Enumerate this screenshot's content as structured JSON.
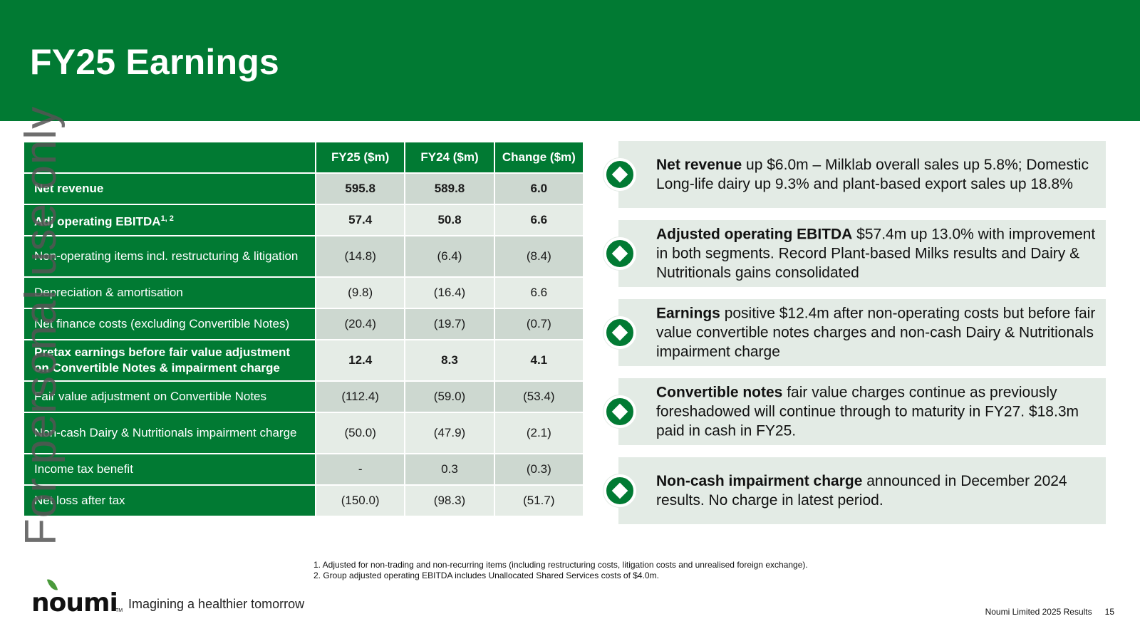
{
  "title": "FY25 Earnings",
  "watermark": "For personal use only",
  "table": {
    "headers": [
      "",
      "FY25 ($m)",
      "FY24 ($m)",
      "Change ($m)"
    ],
    "rows": [
      {
        "label": "Net revenue",
        "sup": "",
        "fy25": "595.8",
        "fy24": "589.8",
        "change": "6.0"
      },
      {
        "label": "Adj operating EBITDA",
        "sup": "1, 2",
        "fy25": "57.4",
        "fy24": "50.8",
        "change": "6.6"
      },
      {
        "label": "Non-operating items incl. restructuring & litigation",
        "sup": "",
        "fy25": "(14.8)",
        "fy24": "(6.4)",
        "change": "(8.4)"
      },
      {
        "label": "Depreciation & amortisation",
        "sup": "",
        "fy25": "(9.8)",
        "fy24": "(16.4)",
        "change": "6.6"
      },
      {
        "label": "Net finance costs (excluding Convertible Notes)",
        "sup": "",
        "fy25": "(20.4)",
        "fy24": "(19.7)",
        "change": "(0.7)"
      },
      {
        "label": "Pretax earnings before fair value adjustment on Convertible Notes & impairment charge",
        "sup": "",
        "fy25": "12.4",
        "fy24": "8.3",
        "change": "4.1"
      },
      {
        "label": "Fair value adjustment on Convertible Notes",
        "sup": "",
        "fy25": "(112.4)",
        "fy24": "(59.0)",
        "change": "(53.4)"
      },
      {
        "label": "Non-cash Dairy & Nutritionals impairment charge",
        "sup": "",
        "fy25": "(50.0)",
        "fy24": "(47.9)",
        "change": "(2.1)"
      },
      {
        "label": "Income tax benefit",
        "sup": "",
        "fy25": "-",
        "fy24": "0.3",
        "change": "(0.3)"
      },
      {
        "label": "Net loss after tax",
        "sup": "",
        "fy25": "(150.0)",
        "fy24": "(98.3)",
        "change": "(51.7)"
      }
    ]
  },
  "highlights": [
    {
      "bold": "Net revenue",
      "text": " up $6.0m – Milklab overall sales up 5.8%; Domestic Long-life dairy up 9.3% and plant-based export sales up 18.8%",
      "icon": "diamond-icon"
    },
    {
      "bold": "Adjusted operating EBITDA",
      "text": " $57.4m up 13.0% with improvement in both segments. Record Plant-based Milks results and Dairy & Nutritionals gains consolidated",
      "icon": "diamond-icon"
    },
    {
      "bold": "Earnings",
      "text": " positive $12.4m after non-operating costs but before fair value convertible notes charges and non-cash Dairy & Nutritionals impairment charge",
      "icon": "diamond-icon"
    },
    {
      "bold": "Convertible notes",
      "text": " fair value charges continue as previously foreshadowed will continue through to maturity in FY27. $18.3m paid in cash in FY25.",
      "icon": "diamond-icon"
    },
    {
      "bold": "Non-cash impairment charge",
      "text": " announced in December 2024 results. No charge in latest period.",
      "icon": "diamond-icon"
    }
  ],
  "footnotes": [
    "1. Adjusted for non-trading and non-recurring items (including restructuring costs, litigation costs and unrealised foreign exchange).",
    "2. Group adjusted operating EBITDA includes Unallocated Shared Services costs of $4.0m."
  ],
  "logo": {
    "word": "noumi",
    "tm": "TM",
    "tagline": "Imagining a healthier tomorrow"
  },
  "footer": {
    "company": "Noumi Limited 2025 Results",
    "page": "15"
  },
  "colors": {
    "brand_green": "#017a33",
    "card_bg": "#e3ebe5",
    "cell_shade": "#cdd8d0",
    "cell_light": "#e5ece6"
  }
}
